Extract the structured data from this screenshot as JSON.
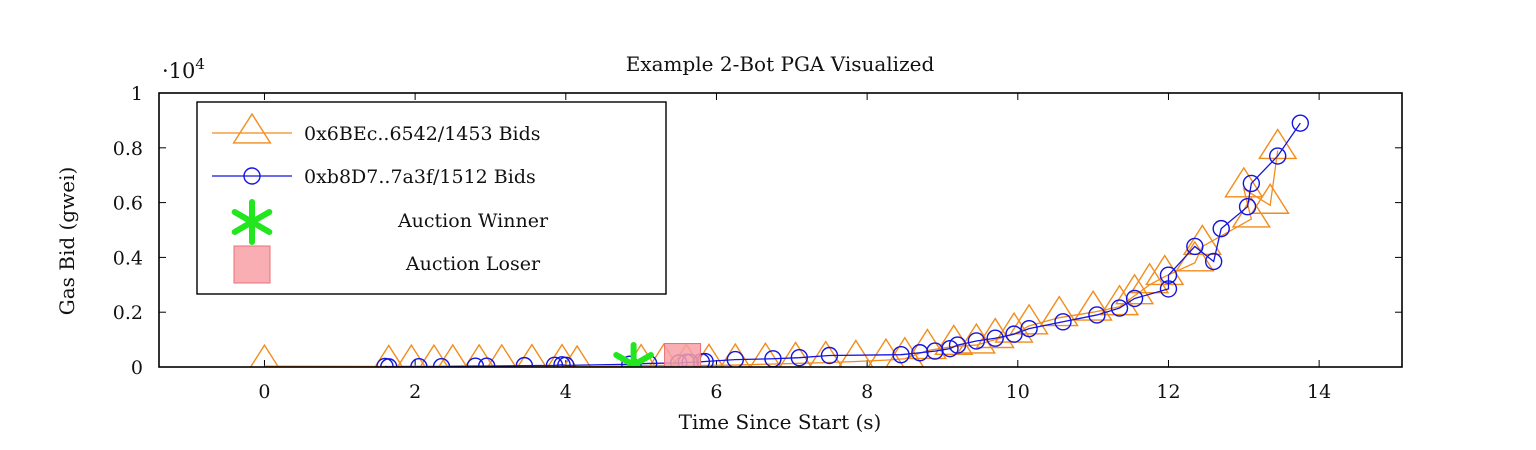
{
  "chart_data": {
    "type": "line",
    "title": "Example 2-Bot PGA Visualized",
    "xlabel": "Time Since Start (s)",
    "ylabel": "Gas Bid (gwei)",
    "y_scale_label": "·10",
    "y_scale_exp": "4",
    "xlim": [
      -1.4,
      15.1
    ],
    "ylim": [
      0,
      1
    ],
    "x_ticks": [
      0,
      2,
      4,
      6,
      8,
      10,
      12,
      14
    ],
    "y_ticks": [
      0,
      0.2,
      0.4,
      0.6,
      0.8,
      1
    ],
    "y_tick_labels": [
      "0",
      "0.2",
      "0.4",
      "0.6",
      "0.8",
      "1"
    ],
    "legend_position": "top-left",
    "legend": {
      "series_a": "0x6BEc..6542/1453 Bids",
      "series_b": "0xb8D7..7a3f/1512 Bids",
      "winner": "Auction Winner",
      "loser": "Auction Loser"
    },
    "colors": {
      "series_a": "#f28c1b",
      "series_b": "#1515e0",
      "winner": "#22e61e",
      "loser": "#f7a0a4"
    },
    "series": [
      {
        "name": "0x6BEc..6542/1453 Bids",
        "x": [
          0,
          1.65,
          1.95,
          2.25,
          2.5,
          2.85,
          3.15,
          3.55,
          3.95,
          4.15,
          5.0,
          5.3,
          5.6,
          5.9,
          6.25,
          6.65,
          7.05,
          7.45,
          7.85,
          8.25,
          8.5,
          8.8,
          9.15,
          9.45,
          9.7,
          9.95,
          10.15,
          10.55,
          11.0,
          11.35,
          11.55,
          11.75,
          11.95,
          12.35,
          12.45,
          13.1,
          13.0,
          13.35,
          13.45
        ],
        "y": [
          0.003,
          0.002,
          0.003,
          0.003,
          0.004,
          0.004,
          0.004,
          0.005,
          0.005,
          0.0,
          0.005,
          0.006,
          0.006,
          0.006,
          0.007,
          0.01,
          0.013,
          0.016,
          0.02,
          0.025,
          0.03,
          0.06,
          0.075,
          0.08,
          0.1,
          0.12,
          0.15,
          0.18,
          0.2,
          0.22,
          0.26,
          0.3,
          0.33,
          0.38,
          0.44,
          0.54,
          0.65,
          0.59,
          0.79
        ]
      },
      {
        "name": "0xb8D7..7a3f/1512 Bids",
        "x": [
          1.6,
          1.65,
          2.05,
          2.35,
          2.8,
          2.95,
          3.45,
          3.85,
          3.95,
          4.0,
          4.85,
          5.1,
          5.5,
          5.6,
          5.65,
          5.8,
          5.85,
          6.25,
          6.75,
          7.1,
          7.5,
          8.45,
          8.7,
          8.9,
          9.1,
          9.2,
          9.45,
          9.7,
          9.95,
          10.15,
          10.6,
          11.05,
          11.35,
          11.55,
          12.0,
          12.0,
          12.35,
          12.6,
          12.7,
          13.05,
          13.1,
          13.45,
          13.75
        ],
        "y": [
          0.002,
          0.0005,
          0.001,
          0.001,
          0.003,
          0.003,
          0.005,
          0.006,
          0.008,
          0.006,
          0.01,
          0.013,
          0.015,
          0.017,
          0.017,
          0.019,
          0.02,
          0.027,
          0.03,
          0.034,
          0.042,
          0.045,
          0.052,
          0.058,
          0.067,
          0.08,
          0.095,
          0.105,
          0.12,
          0.14,
          0.165,
          0.19,
          0.215,
          0.25,
          0.285,
          0.335,
          0.44,
          0.385,
          0.505,
          0.585,
          0.67,
          0.77,
          0.89
        ]
      }
    ],
    "markers": {
      "winner": {
        "x": 4.9,
        "y": 0.0
      },
      "loser": {
        "x": 5.55,
        "y": 0.02
      }
    }
  }
}
